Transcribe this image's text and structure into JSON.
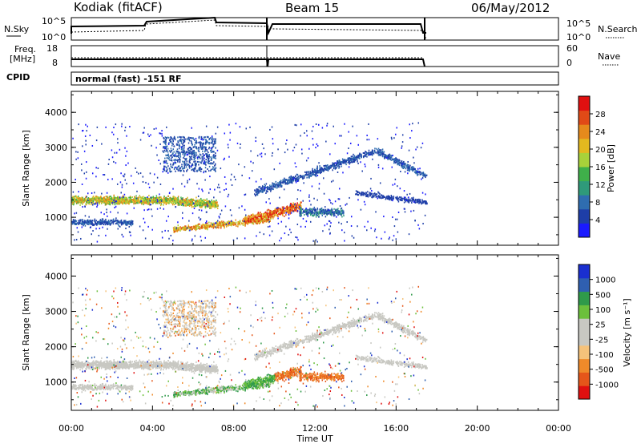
{
  "header": {
    "station": "Kodiak (fitACF)",
    "beam": "Beam 15",
    "date": "06/May/2012"
  },
  "noise_panel": {
    "left_label": "N.Sky",
    "right_label": "N.Search",
    "left_ticks": [
      "10^5",
      "10^0"
    ],
    "right_ticks": [
      "10^5",
      "10^0"
    ]
  },
  "freq_panel": {
    "left_label_1": "Freq.",
    "left_label_2": "[MHz]",
    "right_label": "Nave",
    "left_ticks": [
      "18",
      "8"
    ],
    "right_ticks": [
      "60",
      "0"
    ]
  },
  "cpid": {
    "label": "CPID",
    "value": "normal (fast) -151 RF"
  },
  "colors": {
    "power_scale": [
      "#1a1aff",
      "#1e3ea8",
      "#2f6db0",
      "#2f9a7a",
      "#3fb04a",
      "#a8d23a",
      "#e3b91f",
      "#e58a1c",
      "#e04a17",
      "#e01010"
    ],
    "velocity_scale": [
      "#e01010",
      "#e5561a",
      "#ef8a2a",
      "#f5c27a",
      "#c8c8c2",
      "#c8c8c2",
      "#6cc03c",
      "#2f9a4a",
      "#2f5fb0",
      "#1a2fd0"
    ]
  },
  "chart_data": [
    {
      "type": "heatmap",
      "name": "power",
      "ylabel": "Slant Range [km]",
      "yticks": [
        "1000",
        "2000",
        "3000",
        "4000"
      ],
      "ylim": [
        200,
        4600
      ],
      "colorbar_label": "Power [dB]",
      "colorbar_ticks": [
        "4",
        "8",
        "12",
        "16",
        "20",
        "24",
        "28"
      ],
      "colorbar_range": [
        0,
        32
      ]
    },
    {
      "type": "heatmap",
      "name": "velocity",
      "ylabel": "Slant Range [km]",
      "yticks": [
        "1000",
        "2000",
        "3000",
        "4000"
      ],
      "ylim": [
        200,
        4600
      ],
      "colorbar_label": "Velocity [m s⁻¹]",
      "colorbar_ticks": [
        "1000",
        "500",
        "100",
        "25",
        "-25",
        "-100",
        "-500",
        "-1000"
      ]
    }
  ],
  "x_axis": {
    "label": "Time UT",
    "ticks": [
      "00:00",
      "04:00",
      "08:00",
      "12:00",
      "16:00",
      "20:00",
      "00:00"
    ]
  }
}
